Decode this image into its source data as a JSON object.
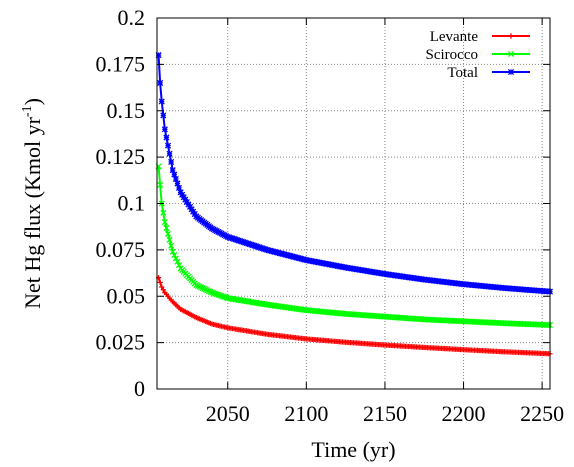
{
  "chart_data": {
    "type": "line",
    "title": "",
    "xlabel": "Time (yr)",
    "ylabel": {
      "main": "Net  Hg  flux (Kmol yr",
      "sup": "-1",
      "close": ")"
    },
    "xlim": [
      2005,
      2255
    ],
    "ylim": [
      0,
      0.2
    ],
    "xticks": [
      2050,
      2100,
      2150,
      2200,
      2250
    ],
    "yticks": [
      0,
      0.025,
      0.05,
      0.075,
      0.1,
      0.125,
      0.15,
      0.175,
      0.2
    ],
    "ytick_labels": [
      "0",
      "0.025",
      "0.05",
      "0.075",
      "0.1",
      "0.125",
      "0.15",
      "0.175",
      "0.2"
    ],
    "grid": true,
    "legend_position": "top-right",
    "series": [
      {
        "name": "Levante",
        "color": "#ff0000",
        "marker": "plus",
        "x": [
          2006,
          2008,
          2010,
          2015,
          2020,
          2030,
          2040,
          2050,
          2075,
          2100,
          2125,
          2150,
          2175,
          2200,
          2225,
          2255
        ],
        "values": [
          0.06,
          0.055,
          0.052,
          0.047,
          0.043,
          0.0385,
          0.035,
          0.033,
          0.0295,
          0.027,
          0.0252,
          0.0237,
          0.0224,
          0.0212,
          0.0201,
          0.019
        ]
      },
      {
        "name": "Scirocco",
        "color": "#00ff00",
        "marker": "cross",
        "x": [
          2006,
          2008,
          2010,
          2015,
          2020,
          2030,
          2040,
          2050,
          2075,
          2100,
          2125,
          2150,
          2175,
          2200,
          2225,
          2255
        ],
        "values": [
          0.12,
          0.1,
          0.09,
          0.074,
          0.065,
          0.056,
          0.052,
          0.049,
          0.0455,
          0.0425,
          0.0405,
          0.039,
          0.0375,
          0.0365,
          0.0355,
          0.0345
        ]
      },
      {
        "name": "Total",
        "color": "#0000ff",
        "marker": "asterisk",
        "x": [
          2006,
          2007,
          2008,
          2010,
          2015,
          2020,
          2030,
          2040,
          2050,
          2075,
          2100,
          2125,
          2150,
          2175,
          2200,
          2225,
          2255
        ],
        "values": [
          0.18,
          0.165,
          0.155,
          0.14,
          0.118,
          0.106,
          0.093,
          0.0865,
          0.082,
          0.075,
          0.0695,
          0.0655,
          0.062,
          0.059,
          0.0565,
          0.0545,
          0.0525
        ]
      }
    ]
  }
}
